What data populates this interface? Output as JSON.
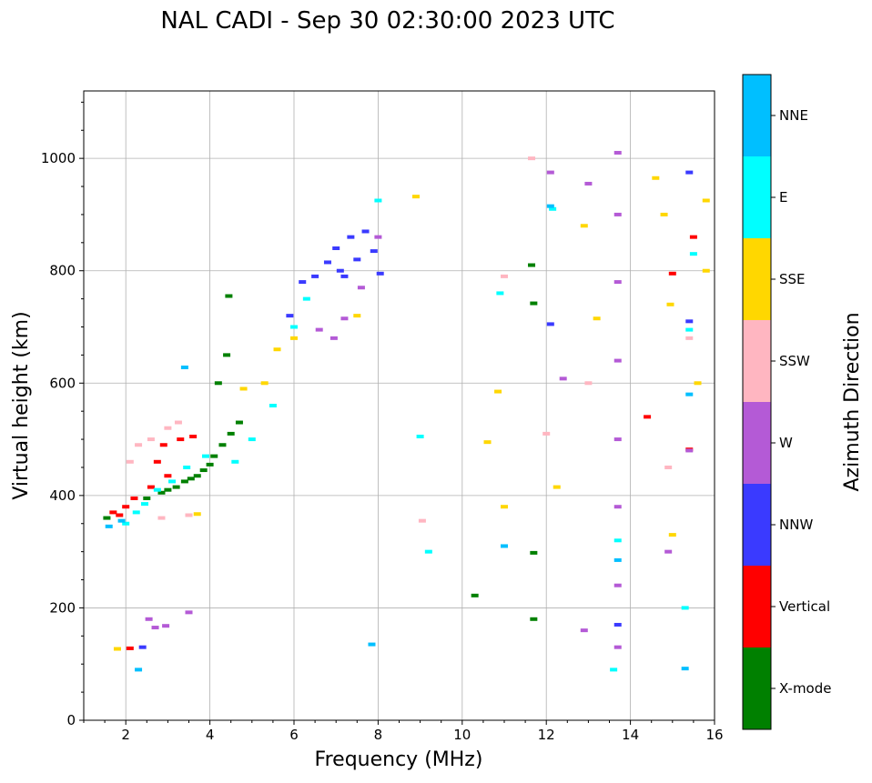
{
  "chart_data": {
    "type": "scatter",
    "title": "NAL CADI - Sep 30 02:30:00 2023 UTC",
    "xlabel": "Frequency (MHz)",
    "ylabel": "Virtual height (km)",
    "xlim": [
      1,
      16
    ],
    "ylim": [
      0,
      1120
    ],
    "x_ticks": [
      "2",
      "4",
      "6",
      "8",
      "10",
      "12",
      "14",
      "16"
    ],
    "y_ticks": [
      "0",
      "200",
      "400",
      "600",
      "800",
      "1000"
    ],
    "grid": true,
    "colorbar": {
      "label": "Azimuth Direction",
      "position": "right",
      "categories": [
        {
          "name": "X-mode",
          "color": "#008000"
        },
        {
          "name": "Vertical",
          "color": "#ff0000"
        },
        {
          "name": "NNW",
          "color": "#3a3aff"
        },
        {
          "name": "W",
          "color": "#b45ad6"
        },
        {
          "name": "SSW",
          "color": "#ffb6c1"
        },
        {
          "name": "SSE",
          "color": "#ffd700"
        },
        {
          "name": "E",
          "color": "#00ffff"
        },
        {
          "name": "NNE",
          "color": "#00bfff"
        }
      ]
    },
    "series": [
      {
        "name": "X-mode",
        "points": [
          [
            1.55,
            360
          ],
          [
            2.5,
            395
          ],
          [
            2.85,
            405
          ],
          [
            3.0,
            410
          ],
          [
            3.2,
            415
          ],
          [
            3.4,
            425
          ],
          [
            3.55,
            430
          ],
          [
            3.7,
            435
          ],
          [
            3.85,
            445
          ],
          [
            4.0,
            455
          ],
          [
            4.1,
            470
          ],
          [
            4.3,
            490
          ],
          [
            4.5,
            510
          ],
          [
            4.7,
            530
          ],
          [
            4.2,
            600
          ],
          [
            4.4,
            650
          ],
          [
            4.45,
            755
          ],
          [
            10.3,
            222
          ],
          [
            11.7,
            298
          ],
          [
            11.7,
            742
          ],
          [
            11.65,
            810
          ],
          [
            11.7,
            180
          ]
        ]
      },
      {
        "name": "Vertical",
        "points": [
          [
            1.7,
            370
          ],
          [
            1.85,
            365
          ],
          [
            2.0,
            380
          ],
          [
            2.2,
            395
          ],
          [
            2.6,
            415
          ],
          [
            2.75,
            460
          ],
          [
            2.9,
            490
          ],
          [
            3.0,
            435
          ],
          [
            3.3,
            500
          ],
          [
            3.6,
            505
          ],
          [
            2.1,
            128
          ],
          [
            14.4,
            540
          ],
          [
            15.0,
            795
          ],
          [
            15.5,
            860
          ],
          [
            15.4,
            482
          ]
        ]
      },
      {
        "name": "NNW",
        "points": [
          [
            6.8,
            815
          ],
          [
            7.0,
            840
          ],
          [
            7.1,
            800
          ],
          [
            7.2,
            790
          ],
          [
            7.35,
            860
          ],
          [
            7.5,
            820
          ],
          [
            7.7,
            870
          ],
          [
            7.9,
            835
          ],
          [
            8.05,
            795
          ],
          [
            6.5,
            790
          ],
          [
            6.2,
            780
          ],
          [
            5.9,
            720
          ],
          [
            2.4,
            130
          ],
          [
            15.4,
            975
          ],
          [
            15.4,
            710
          ],
          [
            13.7,
            170
          ],
          [
            12.1,
            705
          ]
        ]
      },
      {
        "name": "W",
        "points": [
          [
            2.7,
            165
          ],
          [
            2.95,
            168
          ],
          [
            2.55,
            180
          ],
          [
            3.5,
            192
          ],
          [
            6.6,
            695
          ],
          [
            6.95,
            680
          ],
          [
            7.2,
            715
          ],
          [
            7.6,
            770
          ],
          [
            8.0,
            860
          ],
          [
            12.1,
            975
          ],
          [
            13.0,
            955
          ],
          [
            13.7,
            1010
          ],
          [
            13.7,
            900
          ],
          [
            13.7,
            780
          ],
          [
            13.7,
            640
          ],
          [
            13.7,
            500
          ],
          [
            13.7,
            380
          ],
          [
            13.7,
            240
          ],
          [
            13.7,
            130
          ],
          [
            15.4,
            480
          ],
          [
            14.9,
            300
          ],
          [
            12.4,
            608
          ],
          [
            12.9,
            160
          ]
        ]
      },
      {
        "name": "SSW",
        "points": [
          [
            2.1,
            460
          ],
          [
            2.3,
            490
          ],
          [
            2.6,
            500
          ],
          [
            3.0,
            520
          ],
          [
            3.25,
            530
          ],
          [
            2.85,
            360
          ],
          [
            3.5,
            365
          ],
          [
            9.05,
            355
          ],
          [
            11.0,
            790
          ],
          [
            11.65,
            1000
          ],
          [
            12.0,
            510
          ],
          [
            13.0,
            600
          ],
          [
            14.9,
            450
          ],
          [
            15.4,
            680
          ]
        ]
      },
      {
        "name": "SSE",
        "points": [
          [
            1.8,
            127
          ],
          [
            3.7,
            367
          ],
          [
            4.8,
            590
          ],
          [
            5.3,
            600
          ],
          [
            5.6,
            660
          ],
          [
            6.0,
            680
          ],
          [
            7.5,
            720
          ],
          [
            8.9,
            932
          ],
          [
            10.6,
            495
          ],
          [
            10.85,
            585
          ],
          [
            11.0,
            380
          ],
          [
            12.25,
            415
          ],
          [
            12.9,
            880
          ],
          [
            13.2,
            715
          ],
          [
            14.6,
            965
          ],
          [
            14.8,
            900
          ],
          [
            14.95,
            740
          ],
          [
            15.0,
            330
          ],
          [
            15.6,
            600
          ],
          [
            15.8,
            925
          ],
          [
            15.8,
            800
          ]
        ]
      },
      {
        "name": "E",
        "points": [
          [
            2.0,
            350
          ],
          [
            2.25,
            370
          ],
          [
            2.45,
            385
          ],
          [
            2.75,
            410
          ],
          [
            3.1,
            425
          ],
          [
            3.45,
            450
          ],
          [
            3.9,
            470
          ],
          [
            4.6,
            460
          ],
          [
            5.0,
            500
          ],
          [
            5.5,
            560
          ],
          [
            6.0,
            700
          ],
          [
            6.3,
            750
          ],
          [
            8.0,
            925
          ],
          [
            9.0,
            505
          ],
          [
            9.2,
            300
          ],
          [
            10.9,
            760
          ],
          [
            12.15,
            910
          ],
          [
            13.7,
            320
          ],
          [
            15.4,
            695
          ],
          [
            15.5,
            830
          ],
          [
            15.3,
            200
          ],
          [
            13.6,
            90
          ]
        ]
      },
      {
        "name": "NNE",
        "points": [
          [
            1.6,
            345
          ],
          [
            1.9,
            355
          ],
          [
            2.3,
            90
          ],
          [
            3.4,
            628
          ],
          [
            7.85,
            135
          ],
          [
            11.0,
            310
          ],
          [
            12.1,
            915
          ],
          [
            15.3,
            92
          ],
          [
            15.4,
            580
          ],
          [
            13.7,
            285
          ]
        ]
      }
    ]
  }
}
